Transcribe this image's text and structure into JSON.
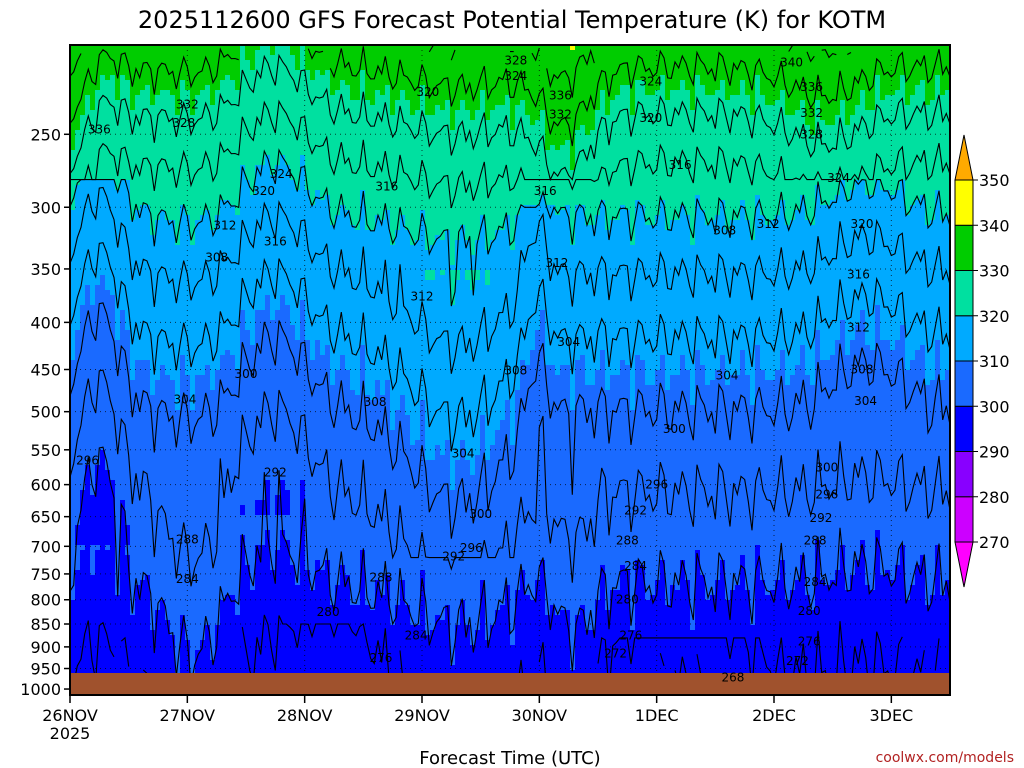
{
  "chart_data": {
    "type": "heatmap",
    "title": "2025112600 GFS Forecast Potential Temperature (K) for KOTM",
    "xlabel": "Forecast Time (UTC)",
    "ylabel": "",
    "x_ticks": [
      "26NOV",
      "27NOV",
      "28NOV",
      "29NOV",
      "30NOV",
      "1DEC",
      "2DEC",
      "3DEC"
    ],
    "x_tick_sublabel": "2025",
    "y_ticks": [
      250,
      300,
      350,
      400,
      450,
      500,
      550,
      600,
      650,
      700,
      750,
      800,
      850,
      900,
      950,
      1000
    ],
    "x_range_days": [
      0,
      7.5
    ],
    "y_range_hpa": [
      200,
      1015
    ],
    "y_scale": "log",
    "legend_levels": [
      270,
      280,
      290,
      300,
      310,
      320,
      330,
      340,
      350
    ],
    "legend_colors": [
      "#ff00ff",
      "#cc00ff",
      "#8800ff",
      "#0000ff",
      "#1a6aff",
      "#00aaff",
      "#00e0a0",
      "#00cc00",
      "#ffff00",
      "#ffaa00"
    ],
    "legend_placement": "right",
    "grid": true,
    "surface_color": "#a0522d",
    "series": [
      {
        "x_days": [
          0,
          0.5,
          1,
          1.5,
          2,
          2.5,
          3,
          3.5,
          4,
          4.5,
          5,
          5.5,
          6,
          6.5,
          7,
          7.5
        ],
        "levels_hpa": [
          1000,
          925,
          850,
          700,
          600,
          500,
          400,
          300,
          250,
          200
        ]
      }
    ],
    "contour_labels": [
      {
        "value": "336",
        "x": 0.25,
        "p": 247
      },
      {
        "value": "332",
        "x": 1.0,
        "p": 232
      },
      {
        "value": "328",
        "x": 0.97,
        "p": 243
      },
      {
        "value": "324",
        "x": 1.8,
        "p": 276
      },
      {
        "value": "320",
        "x": 1.65,
        "p": 288
      },
      {
        "value": "316",
        "x": 1.75,
        "p": 327
      },
      {
        "value": "312",
        "x": 1.32,
        "p": 314
      },
      {
        "value": "308",
        "x": 1.25,
        "p": 340
      },
      {
        "value": "304",
        "x": 0.98,
        "p": 485
      },
      {
        "value": "300",
        "x": 1.5,
        "p": 455
      },
      {
        "value": "296",
        "x": 0.15,
        "p": 565
      },
      {
        "value": "292",
        "x": 1.75,
        "p": 582
      },
      {
        "value": "288",
        "x": 1.0,
        "p": 688
      },
      {
        "value": "284",
        "x": 1.0,
        "p": 760
      },
      {
        "value": "280",
        "x": 2.2,
        "p": 825
      },
      {
        "value": "276",
        "x": 2.65,
        "p": 925
      },
      {
        "value": "320",
        "x": 3.05,
        "p": 225
      },
      {
        "value": "316",
        "x": 2.7,
        "p": 285
      },
      {
        "value": "312",
        "x": 3.0,
        "p": 375
      },
      {
        "value": "308",
        "x": 2.6,
        "p": 488
      },
      {
        "value": "304",
        "x": 3.35,
        "p": 555
      },
      {
        "value": "300",
        "x": 3.5,
        "p": 646
      },
      {
        "value": "296",
        "x": 3.42,
        "p": 703
      },
      {
        "value": "292",
        "x": 3.27,
        "p": 718
      },
      {
        "value": "288",
        "x": 2.65,
        "p": 757
      },
      {
        "value": "284",
        "x": 2.95,
        "p": 875
      },
      {
        "value": "328",
        "x": 3.8,
        "p": 208
      },
      {
        "value": "324",
        "x": 3.8,
        "p": 216
      },
      {
        "value": "336",
        "x": 4.18,
        "p": 227
      },
      {
        "value": "332",
        "x": 4.18,
        "p": 238
      },
      {
        "value": "316",
        "x": 4.05,
        "p": 288
      },
      {
        "value": "312",
        "x": 4.15,
        "p": 345
      },
      {
        "value": "308",
        "x": 3.8,
        "p": 451
      },
      {
        "value": "304",
        "x": 4.25,
        "p": 420
      },
      {
        "value": "324",
        "x": 4.95,
        "p": 219
      },
      {
        "value": "320",
        "x": 4.95,
        "p": 240
      },
      {
        "value": "316",
        "x": 5.2,
        "p": 270
      },
      {
        "value": "308",
        "x": 5.58,
        "p": 318
      },
      {
        "value": "312",
        "x": 5.95,
        "p": 313
      },
      {
        "value": "304",
        "x": 5.6,
        "p": 457
      },
      {
        "value": "300",
        "x": 5.15,
        "p": 522
      },
      {
        "value": "296",
        "x": 5.0,
        "p": 600
      },
      {
        "value": "292",
        "x": 4.82,
        "p": 640
      },
      {
        "value": "288",
        "x": 4.75,
        "p": 690
      },
      {
        "value": "284",
        "x": 4.82,
        "p": 735
      },
      {
        "value": "280",
        "x": 4.75,
        "p": 800
      },
      {
        "value": "276",
        "x": 4.78,
        "p": 875
      },
      {
        "value": "272",
        "x": 4.65,
        "p": 915
      },
      {
        "value": "268",
        "x": 5.65,
        "p": 972
      },
      {
        "value": "340",
        "x": 6.15,
        "p": 209
      },
      {
        "value": "336",
        "x": 6.32,
        "p": 222
      },
      {
        "value": "332",
        "x": 6.32,
        "p": 237
      },
      {
        "value": "328",
        "x": 6.32,
        "p": 250
      },
      {
        "value": "324",
        "x": 6.55,
        "p": 279
      },
      {
        "value": "320",
        "x": 6.75,
        "p": 313
      },
      {
        "value": "316",
        "x": 6.72,
        "p": 355
      },
      {
        "value": "312",
        "x": 6.72,
        "p": 405
      },
      {
        "value": "308",
        "x": 6.75,
        "p": 450
      },
      {
        "value": "304",
        "x": 6.78,
        "p": 487
      },
      {
        "value": "300",
        "x": 6.45,
        "p": 575
      },
      {
        "value": "296",
        "x": 6.45,
        "p": 615
      },
      {
        "value": "292",
        "x": 6.4,
        "p": 652
      },
      {
        "value": "288",
        "x": 6.35,
        "p": 690
      },
      {
        "value": "284",
        "x": 6.35,
        "p": 765
      },
      {
        "value": "280",
        "x": 6.3,
        "p": 823
      },
      {
        "value": "276",
        "x": 6.3,
        "p": 888
      },
      {
        "value": "272",
        "x": 6.2,
        "p": 932
      }
    ]
  },
  "credit": "coolwx.com/models"
}
